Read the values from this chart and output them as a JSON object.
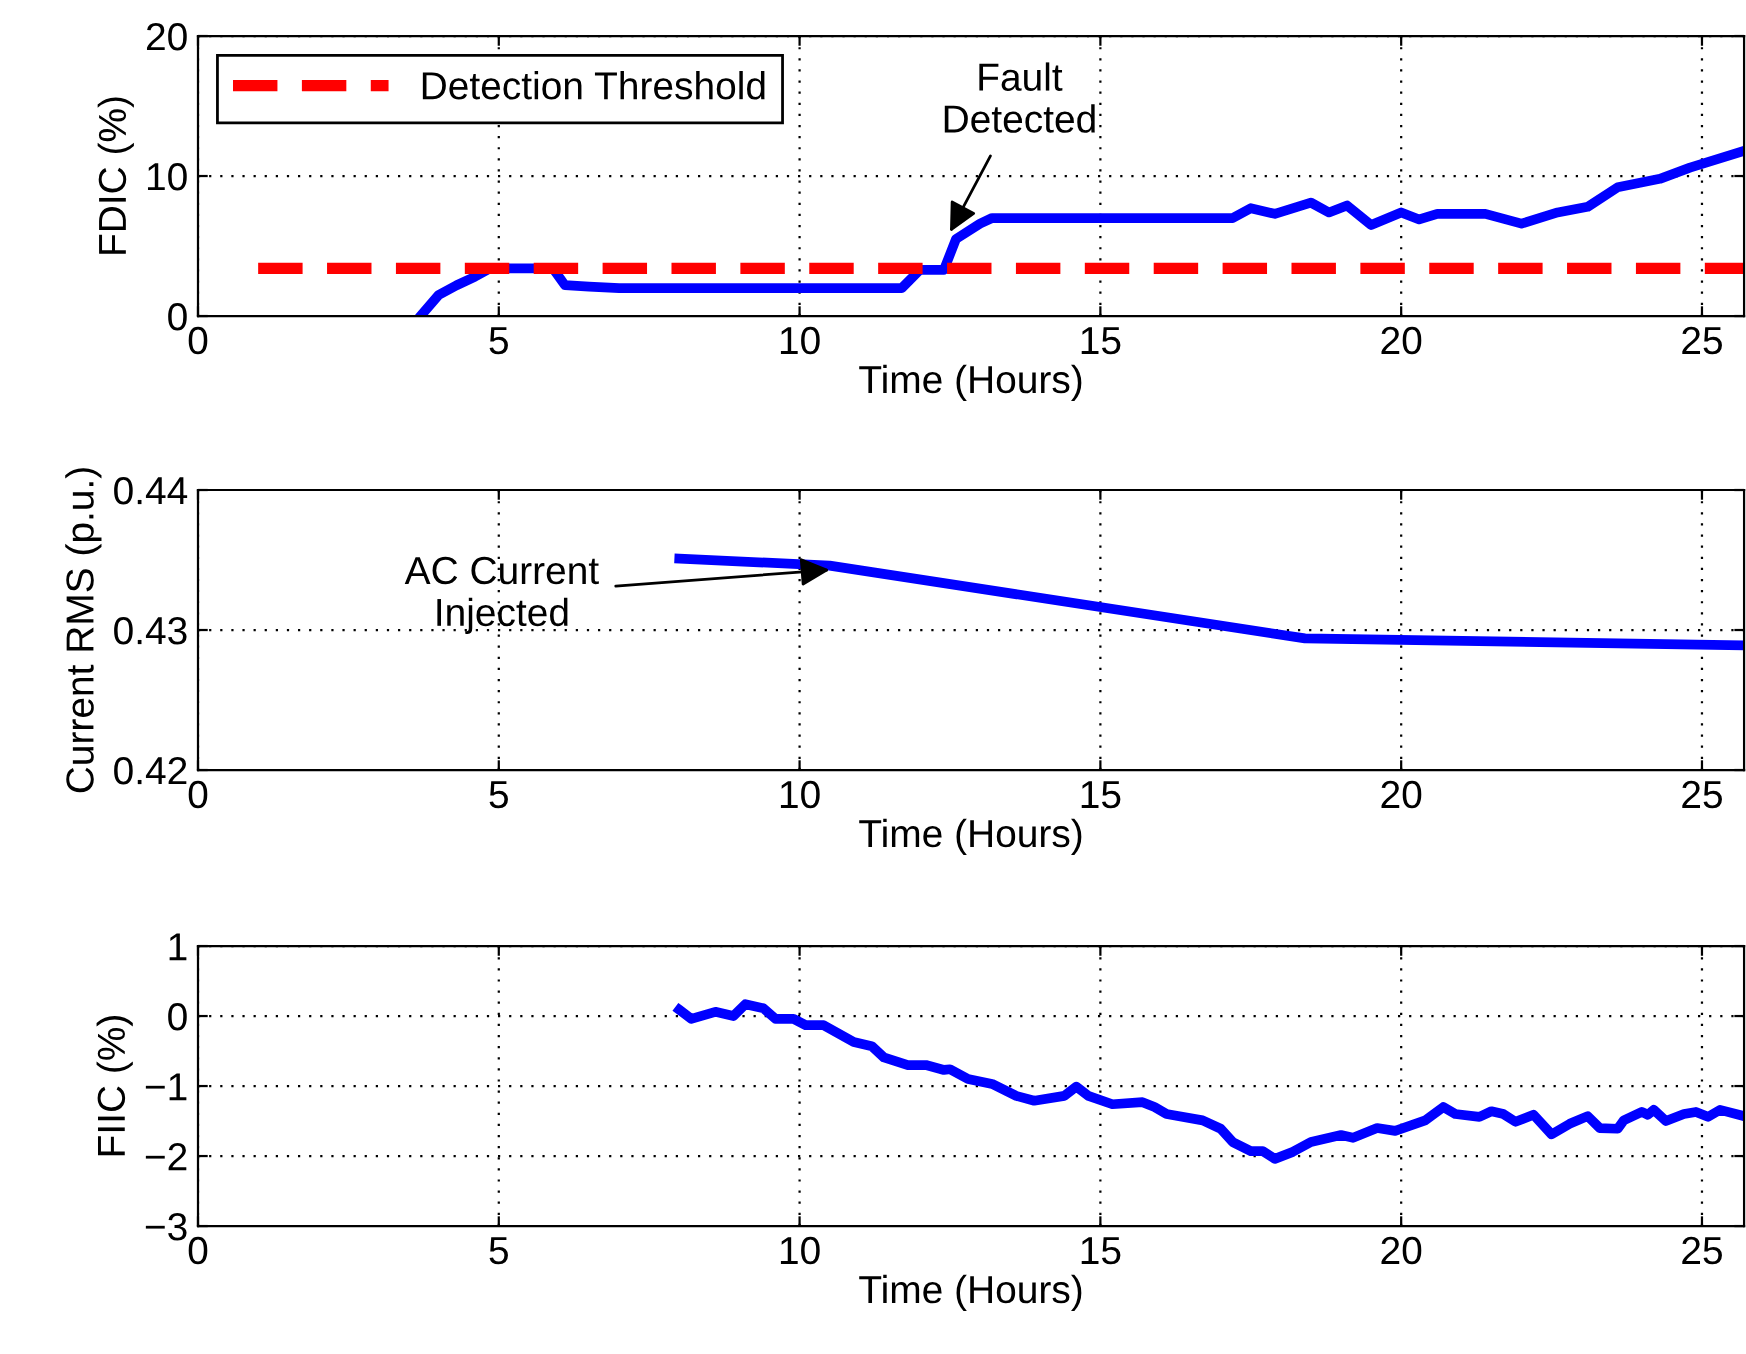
{
  "chart_data": [
    {
      "type": "line",
      "ylabel": "FDIC (%)",
      "xlabel": "Time (Hours)",
      "xlim": [
        0,
        25.7
      ],
      "xticks": [
        0,
        5,
        10,
        15,
        20,
        25
      ],
      "ylim": [
        0,
        20
      ],
      "yticks": [
        0,
        10,
        20
      ],
      "grid": true,
      "legend": "top left",
      "line_style": "solid",
      "marker": "none",
      "series": [
        {
          "color": "#0000ff",
          "x": [
            3.7,
            4.0,
            4.3,
            4.6,
            4.85,
            5.9,
            6.1,
            6.5,
            7.0,
            11.7,
            12.0,
            12.4,
            12.6,
            13.0,
            13.2,
            17.2,
            17.5,
            17.9,
            18.5,
            18.8,
            19.1,
            19.5,
            20.0,
            20.3,
            20.6,
            21.4,
            22.0,
            22.6,
            23.1,
            23.6,
            24.3,
            24.8,
            25.7
          ],
          "values": [
            0,
            1.5,
            2.2,
            2.8,
            3.4,
            3.4,
            2.2,
            2.1,
            2.0,
            2.0,
            3.3,
            3.3,
            5.5,
            6.6,
            7.0,
            7.0,
            7.7,
            7.3,
            8.1,
            7.4,
            7.9,
            6.5,
            7.4,
            6.9,
            7.3,
            7.3,
            6.6,
            7.4,
            7.8,
            9.2,
            9.8,
            10.6,
            11.8
          ]
        },
        {
          "name": "Detection Threshold",
          "color": "#ff0000",
          "line_style": "dashed",
          "x": [
            1,
            25.7
          ],
          "values": [
            3.4,
            3.4
          ]
        }
      ],
      "annotations": [
        {
          "text": "Fault\nDetected",
          "x": 12.5,
          "y": 6.0
        }
      ]
    },
    {
      "type": "line",
      "ylabel": "Current RMS (p.u.)",
      "xlabel": "Time (Hours)",
      "xlim": [
        0,
        25.7
      ],
      "xticks": [
        0,
        5,
        10,
        15,
        20,
        25
      ],
      "ylim": [
        0.42,
        0.44
      ],
      "yticks": [
        0.42,
        0.43,
        0.44
      ],
      "grid": true,
      "line_style": "solid",
      "marker": "none",
      "series": [
        {
          "color": "#0000ff",
          "x": [
            8.0,
            10.5,
            18.4,
            25.7
          ],
          "values": [
            0.4351,
            0.4346,
            0.4294,
            0.4289
          ]
        }
      ],
      "annotations": [
        {
          "text": "AC Current\nInjected",
          "x": 10.5,
          "y": 0.4343
        }
      ]
    },
    {
      "type": "line",
      "ylabel": "FIIC (%)",
      "xlabel": "Time (Hours)",
      "xlim": [
        0,
        25.7
      ],
      "xticks": [
        0,
        5,
        10,
        15,
        20,
        25
      ],
      "ylim": [
        -3,
        1
      ],
      "yticks": [
        {
          "value": -3,
          "label": "−3"
        },
        {
          "value": -2,
          "label": "−2"
        },
        {
          "value": -1,
          "label": "−1"
        },
        0,
        1
      ],
      "grid": true,
      "line_style": "solid",
      "marker": "none",
      "series": [
        {
          "color": "#0000ff",
          "x": [
            8.0,
            8.2,
            8.6,
            8.9,
            9.1,
            9.4,
            9.6,
            9.9,
            10.1,
            10.4,
            10.9,
            11.2,
            11.4,
            11.8,
            12.1,
            12.4,
            12.5,
            12.8,
            13.2,
            13.6,
            13.9,
            14.4,
            14.6,
            14.8,
            15.2,
            15.7,
            15.9,
            16.1,
            16.7,
            17.0,
            17.2,
            17.5,
            17.7,
            17.9,
            18.2,
            18.5,
            19.0,
            19.2,
            19.6,
            19.9,
            20.4,
            20.7,
            20.9,
            21.3,
            21.5,
            21.7,
            21.9,
            22.2,
            22.5,
            22.8,
            23.1,
            23.3,
            23.6,
            23.7,
            24.0,
            24.1,
            24.2,
            24.4,
            24.7,
            24.9,
            25.1,
            25.3,
            25.7
          ],
          "values": [
            0.09,
            -0.04,
            0.06,
            0,
            0.17,
            0.11,
            -0.04,
            -0.04,
            -0.13,
            -0.13,
            -0.37,
            -0.43,
            -0.59,
            -0.7,
            -0.7,
            -0.77,
            -0.76,
            -0.9,
            -0.97,
            -1.14,
            -1.21,
            -1.14,
            -1.01,
            -1.14,
            -1.26,
            -1.23,
            -1.3,
            -1.4,
            -1.49,
            -1.61,
            -1.8,
            -1.93,
            -1.93,
            -2.04,
            -1.94,
            -1.8,
            -1.7,
            -1.74,
            -1.6,
            -1.64,
            -1.49,
            -1.3,
            -1.4,
            -1.44,
            -1.36,
            -1.4,
            -1.51,
            -1.41,
            -1.69,
            -1.54,
            -1.43,
            -1.6,
            -1.61,
            -1.49,
            -1.37,
            -1.41,
            -1.34,
            -1.5,
            -1.4,
            -1.37,
            -1.44,
            -1.34,
            -1.43
          ]
        }
      ]
    }
  ]
}
